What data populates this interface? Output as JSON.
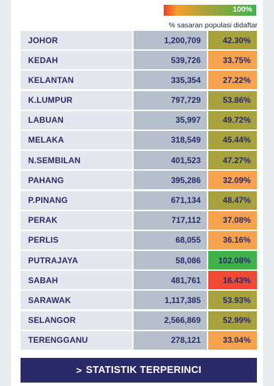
{
  "legend": {
    "max_label": "100%",
    "caption": "% sasaran populasi didaftar"
  },
  "rows": [
    {
      "state": "JOHOR",
      "count": "1,200,709",
      "percent": "42.30%",
      "color": "#a7a33a"
    },
    {
      "state": "KEDAH",
      "count": "539,726",
      "percent": "33.75%",
      "color": "#f7a24d"
    },
    {
      "state": "KELANTAN",
      "count": "335,354",
      "percent": "27.22%",
      "color": "#f7a24d"
    },
    {
      "state": "K.LUMPUR",
      "count": "797,729",
      "percent": "53.86%",
      "color": "#a9a33f"
    },
    {
      "state": "LABUAN",
      "count": "35,997",
      "percent": "49.72%",
      "color": "#a9a33f"
    },
    {
      "state": "MELAKA",
      "count": "318,549",
      "percent": "45.44%",
      "color": "#a9a33f"
    },
    {
      "state": "N.SEMBILAN",
      "count": "401,523",
      "percent": "47.27%",
      "color": "#a9a33f"
    },
    {
      "state": "PAHANG",
      "count": "395,286",
      "percent": "32.09%",
      "color": "#f7a24d"
    },
    {
      "state": "P.PINANG",
      "count": "671,134",
      "percent": "48.47%",
      "color": "#a9a33f"
    },
    {
      "state": "PERAK",
      "count": "717,112",
      "percent": "37.08%",
      "color": "#f7a24d"
    },
    {
      "state": "PERLIS",
      "count": "68,055",
      "percent": "36.16%",
      "color": "#f7a24d"
    },
    {
      "state": "PUTRAJAYA",
      "count": "58,086",
      "percent": "102.08%",
      "color": "#3fb24a"
    },
    {
      "state": "SABAH",
      "count": "481,761",
      "percent": "16.43%",
      "color": "#ef4a32"
    },
    {
      "state": "SARAWAK",
      "count": "1,117,385",
      "percent": "53.93%",
      "color": "#a9a33f"
    },
    {
      "state": "SELANGOR",
      "count": "2,566,869",
      "percent": "52.99%",
      "color": "#a9a33f"
    },
    {
      "state": "TERENGGANU",
      "count": "278,121",
      "percent": "33.04%",
      "color": "#f7a24d"
    }
  ],
  "cta": {
    "icon": "chevron-right-icon",
    "label": "STATISTIK TERPERINCI"
  }
}
